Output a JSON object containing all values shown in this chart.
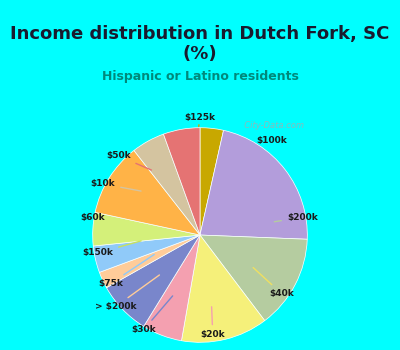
{
  "title": "Income distribution in Dutch Fork, SC\n(%)",
  "subtitle": "Hispanic or Latino residents",
  "background_top": "#00FFFF",
  "background_chart": "#e8f5e9",
  "labels": [
    "$125k",
    "$100k",
    "$200k",
    "$40k",
    "$20k",
    "$30k",
    "> $200k",
    "$75k",
    "$150k",
    "$60k",
    "$10k",
    "$50k"
  ],
  "sizes": [
    3.5,
    22,
    14,
    13,
    6,
    8,
    2.5,
    4,
    5,
    11,
    5,
    5.5
  ],
  "colors": [
    "#c8a800",
    "#b39ddb",
    "#b5cca0",
    "#f5f07a",
    "#f4a0b0",
    "#7986cb",
    "#ffcc99",
    "#90caf9",
    "#d4f07a",
    "#ffb347",
    "#d4c4a0",
    "#e57373"
  ],
  "startangle": 90,
  "chart_bg": "#dff0e8",
  "watermark": "City-Data.com"
}
